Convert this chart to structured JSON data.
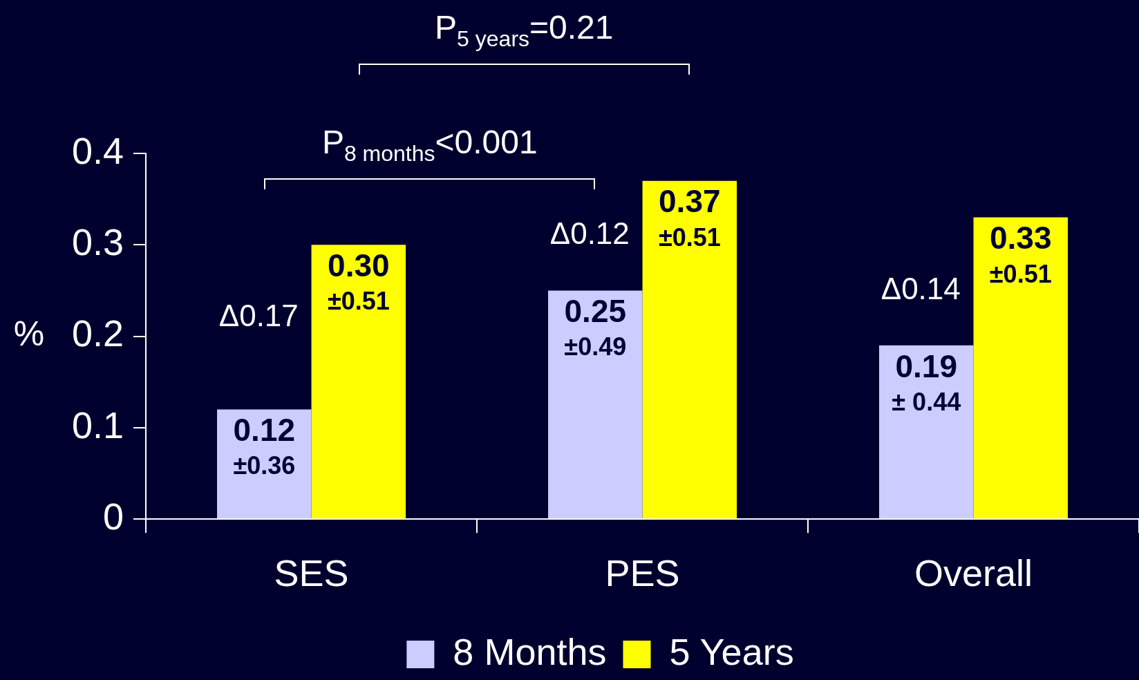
{
  "chart_data": {
    "type": "bar",
    "ylabel": "%",
    "categories": [
      "SES",
      "PES",
      "Overall"
    ],
    "series": [
      {
        "name": "8 Months",
        "color": "#ccccff",
        "values": [
          0.12,
          0.25,
          0.19
        ],
        "value_labels": [
          "0.12\n±0.36",
          "0.25\n±0.49",
          "0.19\n± 0.44"
        ]
      },
      {
        "name": "5 Years",
        "color": "#ffff00",
        "values": [
          0.3,
          0.37,
          0.33
        ],
        "value_labels": [
          "0.30\n±0.51",
          "0.37\n±0.51",
          "0.33\n±0.51"
        ]
      }
    ],
    "ylim": [
      0,
      0.4
    ],
    "yticks": [
      0,
      0.1,
      0.2,
      0.3,
      0.4
    ],
    "grid": false,
    "legend": "bottom",
    "annotations": [
      "P$_{5 years}$=0.21",
      "P$_{8 months}$<0.001",
      {
        "text": "Δ0.17",
        "x": "SES",
        "y": 0.22
      },
      {
        "text": "Δ0.12",
        "x": "PES",
        "y": 0.31
      },
      {
        "text": "Δ0.14",
        "x": "Overall",
        "y": 0.25
      }
    ]
  }
}
